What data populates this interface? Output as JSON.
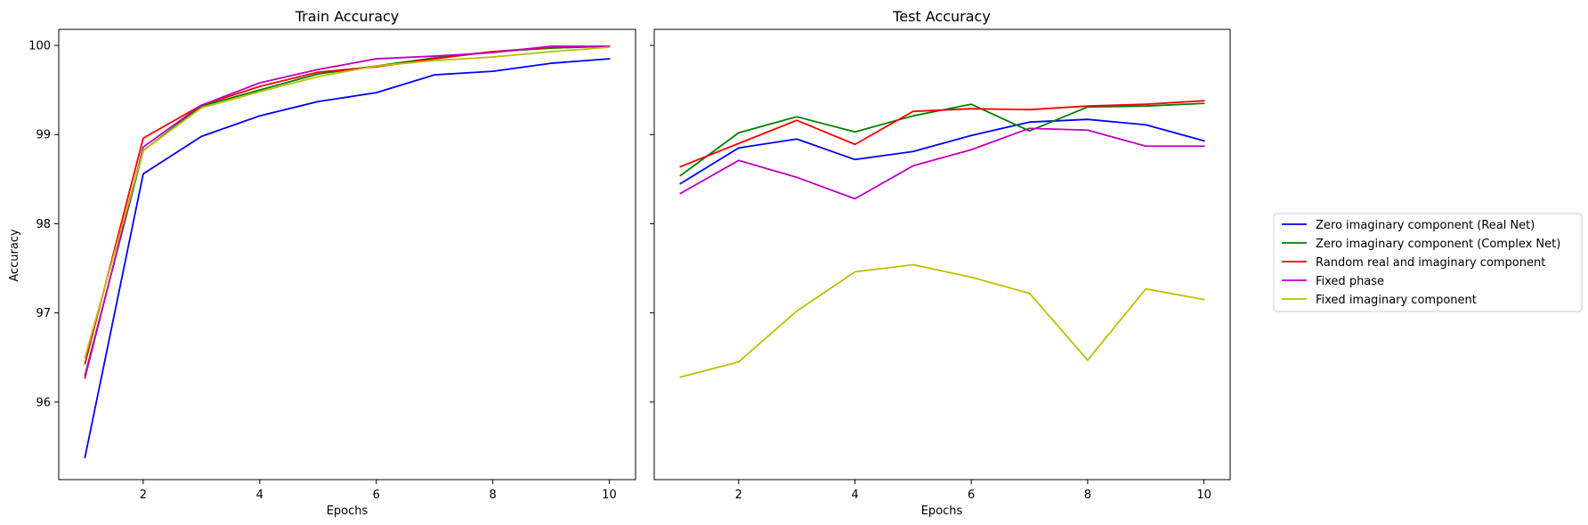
{
  "chart_data": [
    {
      "type": "line",
      "title": "Train Accuracy",
      "xlabel": "Epochs",
      "ylabel": "Accuracy",
      "x": [
        1,
        2,
        3,
        4,
        5,
        6,
        7,
        8,
        9,
        10
      ],
      "xticks": [
        "2",
        "4",
        "6",
        "8",
        "10"
      ],
      "yticks": [
        "96",
        "97",
        "98",
        "99",
        "100"
      ],
      "xlim": [
        0.55,
        10.45
      ],
      "ylim": [
        95.13,
        100.18
      ],
      "grid": false,
      "series": [
        {
          "name": "Zero imaginary component (Real Net)",
          "color": "#0000ff",
          "values": [
            95.38,
            98.56,
            98.98,
            99.21,
            99.37,
            99.47,
            99.67,
            99.71,
            99.8,
            99.85
          ]
        },
        {
          "name": "Zero imaginary component (Complex Net)",
          "color": "#008000",
          "values": [
            96.3,
            98.82,
            99.32,
            99.5,
            99.68,
            99.77,
            99.86,
            99.93,
            99.97,
            99.99
          ]
        },
        {
          "name": "Random real and imaginary component",
          "color": "#ff0000",
          "values": [
            96.43,
            98.96,
            99.33,
            99.54,
            99.7,
            99.76,
            99.85,
            99.93,
            99.98,
            99.99
          ]
        },
        {
          "name": "Fixed phase",
          "color": "#bf00bf",
          "values": [
            96.27,
            98.86,
            99.33,
            99.58,
            99.73,
            99.85,
            99.88,
            99.92,
            99.99,
            99.99
          ]
        },
        {
          "name": "Fixed imaginary component",
          "color": "#bfbf00",
          "values": [
            96.5,
            98.82,
            99.3,
            99.48,
            99.65,
            99.77,
            99.83,
            99.87,
            99.93,
            99.98
          ]
        }
      ]
    },
    {
      "type": "line",
      "title": "Test Accuracy",
      "xlabel": "Epochs",
      "ylabel": "",
      "x": [
        1,
        2,
        3,
        4,
        5,
        6,
        7,
        8,
        9,
        10
      ],
      "xticks": [
        "2",
        "4",
        "6",
        "8",
        "10"
      ],
      "yticks": [
        "96",
        "97",
        "98",
        "99",
        "100"
      ],
      "xlim": [
        0.55,
        10.45
      ],
      "ylim": [
        95.13,
        100.18
      ],
      "grid": false,
      "series": [
        {
          "name": "Zero imaginary component (Real Net)",
          "color": "#0000ff",
          "values": [
            98.45,
            98.85,
            98.95,
            98.72,
            98.81,
            98.99,
            99.14,
            99.17,
            99.11,
            98.93
          ]
        },
        {
          "name": "Zero imaginary component (Complex Net)",
          "color": "#008000",
          "values": [
            98.54,
            99.02,
            99.2,
            99.03,
            99.21,
            99.34,
            99.04,
            99.31,
            99.32,
            99.35
          ]
        },
        {
          "name": "Random real and imaginary component",
          "color": "#ff0000",
          "values": [
            98.64,
            98.9,
            99.16,
            98.89,
            99.26,
            99.29,
            99.28,
            99.32,
            99.34,
            99.38
          ]
        },
        {
          "name": "Fixed phase",
          "color": "#bf00bf",
          "values": [
            98.34,
            98.71,
            98.52,
            98.28,
            98.65,
            98.83,
            99.07,
            99.05,
            98.87,
            98.87
          ]
        },
        {
          "name": "Fixed imaginary component",
          "color": "#bfbf00",
          "values": [
            96.28,
            96.45,
            97.02,
            97.46,
            97.54,
            97.4,
            97.22,
            96.47,
            97.27,
            97.15
          ]
        }
      ]
    }
  ],
  "legend": {
    "placement": "right",
    "entries": [
      {
        "label": "Zero imaginary component (Real Net)",
        "color": "#0000ff"
      },
      {
        "label": "Zero imaginary component (Complex Net)",
        "color": "#008000"
      },
      {
        "label": "Random real and imaginary component",
        "color": "#ff0000"
      },
      {
        "label": "Fixed phase",
        "color": "#bf00bf"
      },
      {
        "label": "Fixed imaginary component",
        "color": "#bfbf00"
      }
    ]
  }
}
